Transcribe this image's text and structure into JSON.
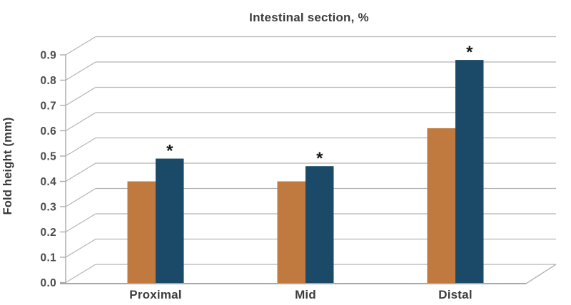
{
  "title": "Intestinal section, %",
  "chart_data": {
    "type": "bar",
    "style": "pseudo-3d-grouped-bars",
    "title": "Intestinal section, %",
    "xlabel": "",
    "ylabel": "Fold height (mm)",
    "categories": [
      "Proximal",
      "Mid",
      "Distal"
    ],
    "series": [
      {
        "name": "orange-series",
        "color": "#c0793e",
        "values": [
          0.4,
          0.4,
          0.61
        ],
        "annotations": [
          "",
          "",
          ""
        ]
      },
      {
        "name": "navy-series",
        "color": "#1b4a68",
        "values": [
          0.49,
          0.46,
          0.88
        ],
        "annotations": [
          "*",
          "*",
          "*"
        ]
      }
    ],
    "ylim": [
      0.0,
      0.9
    ],
    "yticks": [
      0.0,
      0.1,
      0.2,
      0.3,
      0.4,
      0.5,
      0.6,
      0.7,
      0.8,
      0.9
    ],
    "ytick_labels": [
      "0.0",
      "0.1",
      "0.2",
      "0.3",
      "0.4",
      "0.5",
      "0.6",
      "0.7",
      "0.8",
      "0.9"
    ],
    "grid": true,
    "legend": "none",
    "colors": {
      "gridline": "#b4b4b8",
      "axis": "#a9a9ad",
      "floor_line": "#a8a8ac",
      "title_text": "#3d3d3f",
      "tick_text": "#4b4b4d",
      "annotation_text": "#151515",
      "background": "#ffffff"
    }
  }
}
